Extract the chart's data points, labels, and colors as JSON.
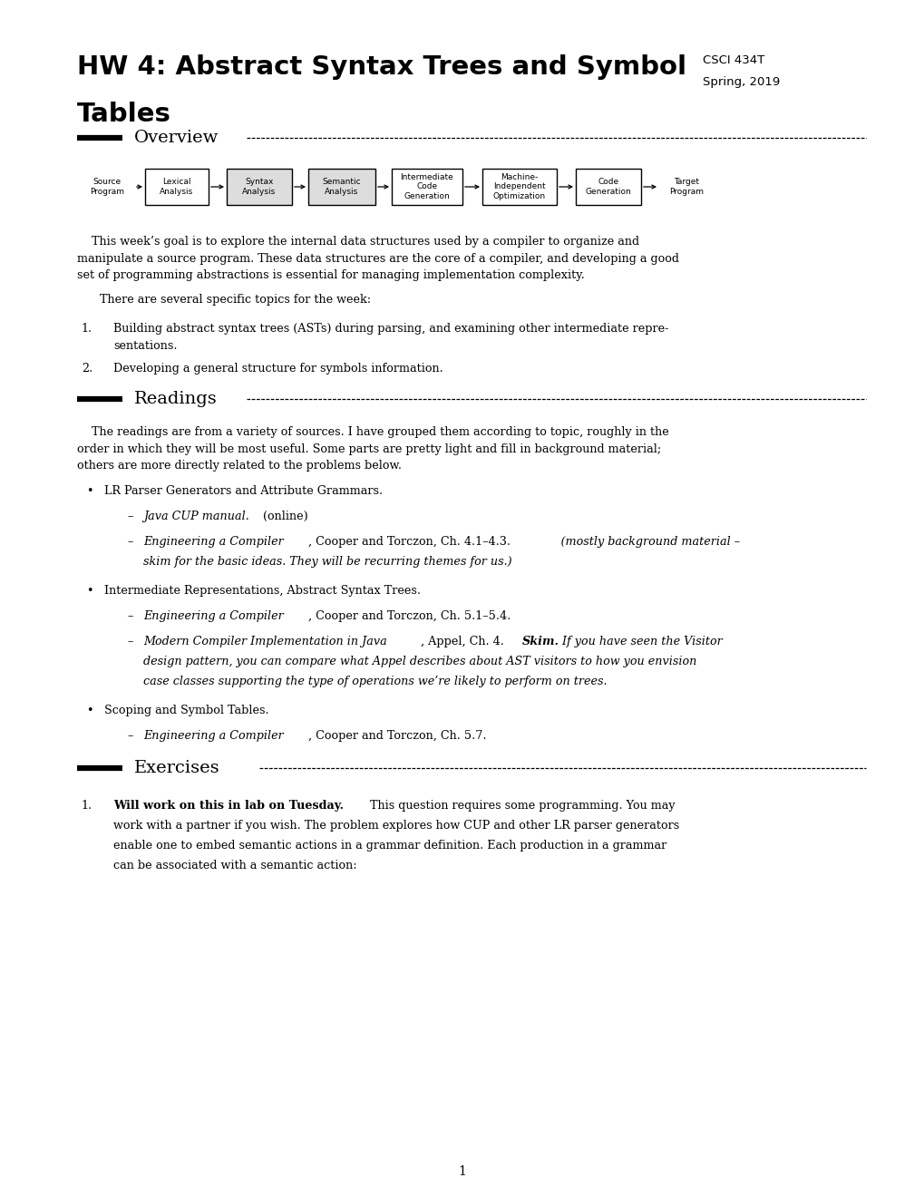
{
  "bg_color": "#ffffff",
  "title_line1": "HW 4: Abstract Syntax Trees and Symbol",
  "title_line2": "Tables",
  "course": "CSCI 434T",
  "semester": "Spring, 2019",
  "section_overview": "Overview",
  "section_readings": "Readings",
  "section_exercises": "Exercises",
  "page_number": "1",
  "pipeline_boxes": [
    {
      "label": "Source\nProgram",
      "box": false,
      "gray": false
    },
    {
      "label": "Lexical\nAnalysis",
      "box": true,
      "gray": false
    },
    {
      "label": "Syntax\nAnalysis",
      "box": true,
      "gray": true
    },
    {
      "label": "Semantic\nAnalysis",
      "box": true,
      "gray": true
    },
    {
      "label": "Intermediate\nCode\nGeneration",
      "box": true,
      "gray": false
    },
    {
      "label": "Machine-\nIndependent\nOptimization",
      "box": true,
      "gray": false
    },
    {
      "label": "Code\nGeneration",
      "box": true,
      "gray": false
    },
    {
      "label": "Target\nProgram",
      "box": false,
      "gray": false
    }
  ]
}
